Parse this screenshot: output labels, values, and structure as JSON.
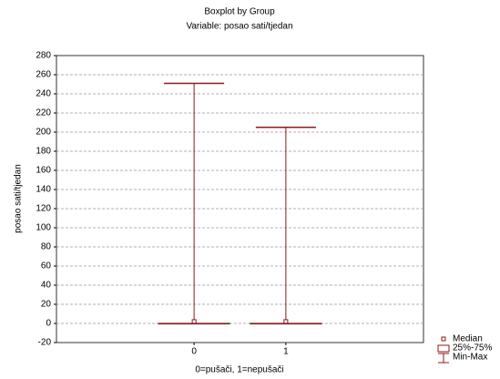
{
  "chart_data": {
    "type": "box",
    "title": "Boxplot by Group",
    "subtitle": "Variable: posao sati/tjedan",
    "x_label": "0=pušači, 1=nepušači",
    "y_label": "posao sati/tjedan",
    "categories": [
      "0",
      "1"
    ],
    "min": [
      0,
      0
    ],
    "q1": [
      0,
      0
    ],
    "median": [
      2,
      2
    ],
    "q3": [
      0,
      0
    ],
    "max": [
      251,
      205
    ],
    "color": "#8b1a1a",
    "ylim": [
      -20,
      280
    ],
    "yticks": [
      -20,
      0,
      20,
      40,
      60,
      80,
      100,
      120,
      140,
      160,
      180,
      200,
      220,
      240,
      260,
      280
    ],
    "grid": true,
    "legend": [
      "Median",
      "25%-75%",
      "Min-Max"
    ],
    "legend_position": "bottom-right"
  }
}
